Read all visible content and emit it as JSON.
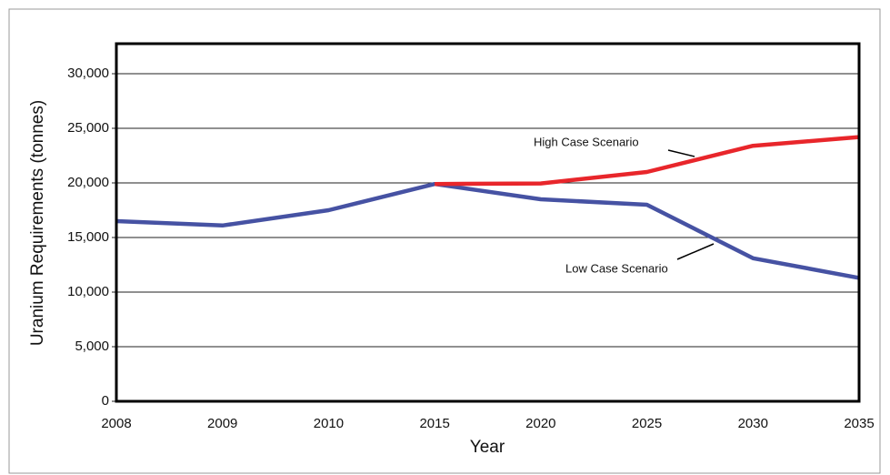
{
  "chart_data": {
    "type": "line",
    "x_label": "Year",
    "y_label": "Uranium Requirements (tonnes)",
    "categories": [
      "2008",
      "2009",
      "2010",
      "2015",
      "2020",
      "2025",
      "2030",
      "2035"
    ],
    "series": [
      {
        "name": "Low Case Scenario",
        "color": "#4652a3",
        "values": [
          16500,
          16100,
          17500,
          19900,
          18500,
          18000,
          13100,
          11300
        ]
      },
      {
        "name": "High Case Scenario",
        "color": "#e8262b",
        "values": [
          null,
          null,
          null,
          19900,
          19950,
          21000,
          23400,
          24200
        ]
      }
    ],
    "ylim": [
      0,
      32750
    ],
    "yticks": [
      0,
      {
        "value": 5000,
        "label": "5,000"
      },
      {
        "value": 10000,
        "label": "10,000"
      },
      {
        "value": 15000,
        "label": "15,000"
      },
      {
        "value": 20000,
        "label": "20,000"
      },
      {
        "value": 25000,
        "label": "25,000"
      },
      {
        "value": 30000,
        "label": "30,000"
      }
    ],
    "grid": true
  }
}
